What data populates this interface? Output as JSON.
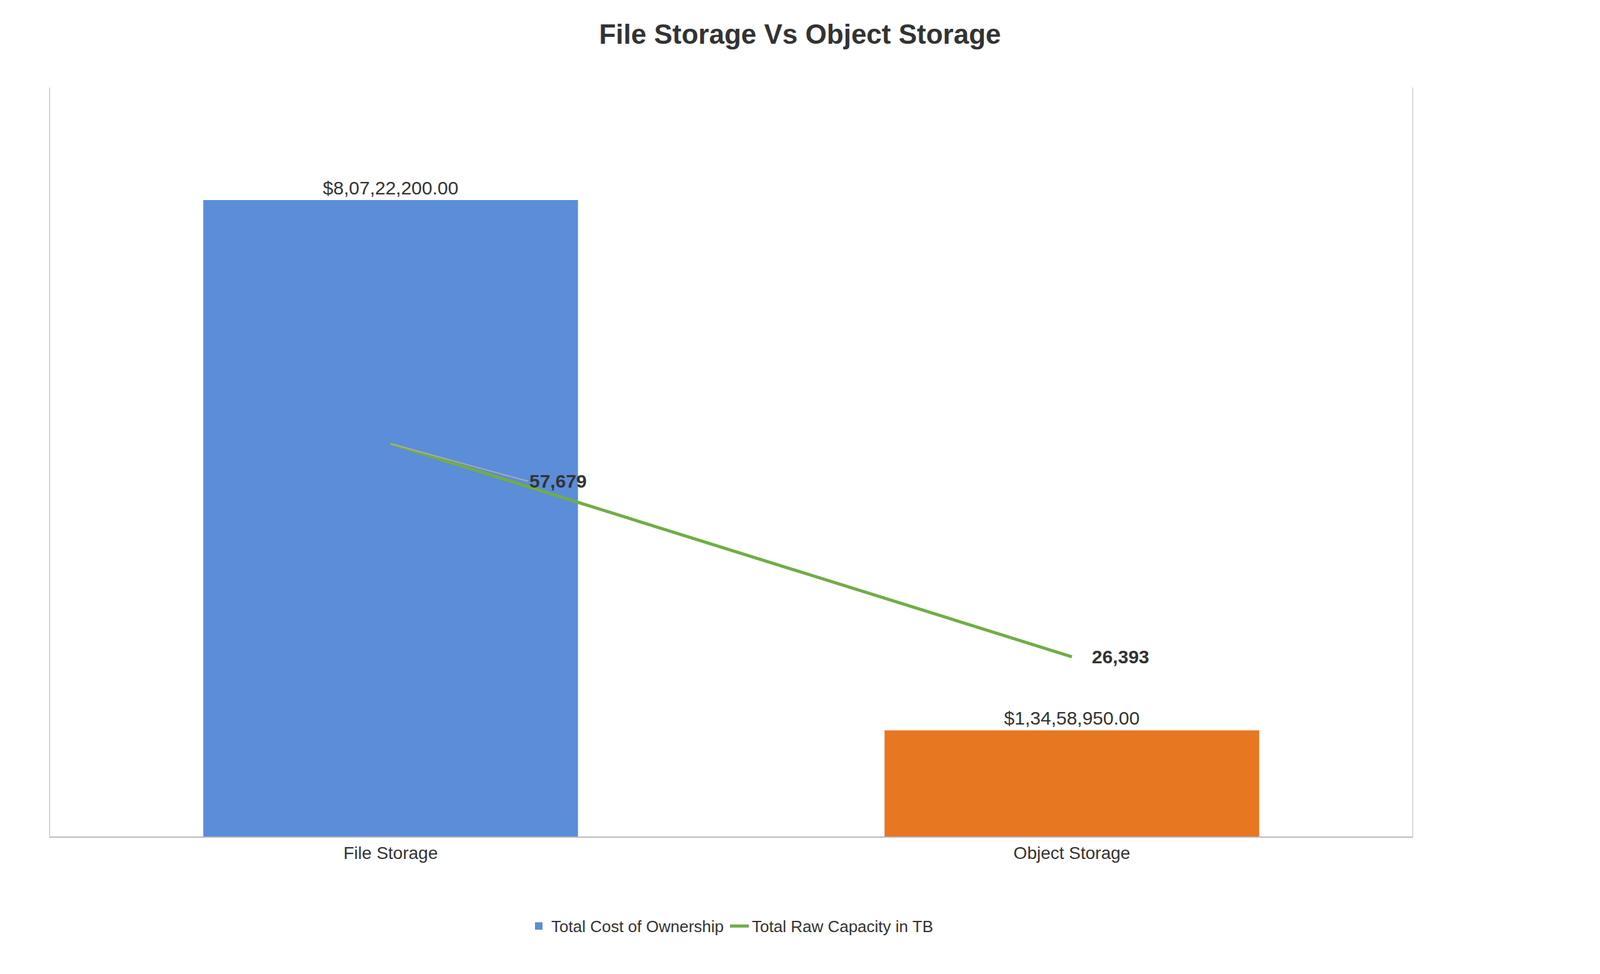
{
  "chart_data": {
    "type": "bar",
    "title": "File Storage Vs Object Storage",
    "categories": [
      "File Storage",
      "Object Storage"
    ],
    "series": [
      {
        "name": "Total Cost of Ownership",
        "type": "bar",
        "colors": [
          "#5B8DD9",
          "#E87722"
        ],
        "values": [
          80722200,
          13458950
        ],
        "value_labels": [
          "$8,07,22,200.00",
          "$1,34,58,950.00"
        ]
      },
      {
        "name": "Total Raw Capacity in TB",
        "type": "line",
        "axis": "y2",
        "color": "#70AD47",
        "values": [
          57679,
          26393
        ],
        "value_labels": [
          "57,679",
          "26,393"
        ]
      }
    ],
    "ylim": [
      0,
      95000000
    ],
    "y2lim": [
      0,
      110000
    ],
    "tick_labels": "x",
    "data_labels": true,
    "legend": "bottom",
    "grid": false
  }
}
